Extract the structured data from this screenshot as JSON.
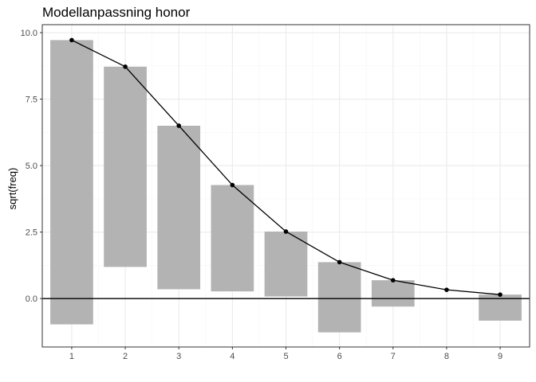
{
  "chart_data": {
    "type": "bar",
    "title": "Modellanpassning honor",
    "xlabel": "",
    "ylabel": "sqrt(freq)",
    "categories": [
      "1",
      "2",
      "3",
      "4",
      "5",
      "6",
      "7",
      "8",
      "9"
    ],
    "x": [
      1,
      2,
      3,
      4,
      5,
      6,
      7,
      8,
      9
    ],
    "expected_sqrt_freq": [
      9.72,
      8.72,
      6.5,
      4.27,
      2.52,
      1.37,
      0.69,
      0.33,
      0.15
    ],
    "bar_top": [
      9.72,
      8.72,
      6.5,
      4.27,
      2.52,
      1.37,
      0.69,
      null,
      0.15
    ],
    "bar_bottom": [
      -0.97,
      1.19,
      0.35,
      0.27,
      0.08,
      -1.27,
      -0.3,
      null,
      -0.83
    ],
    "xlim": [
      0.45,
      9.55
    ],
    "ylim": [
      -1.82,
      10.3
    ],
    "yticks": [
      "0.0",
      "2.5",
      "5.0",
      "7.5",
      "10.0"
    ],
    "ytick_values": [
      0,
      2.5,
      5,
      7.5,
      10
    ],
    "reference_line": 0,
    "grid": true,
    "legend": "none",
    "colors": {
      "bar": "#b3b3b3",
      "line": "#000000",
      "grid_major": "#ebebeb",
      "grid_minor": "#f5f5f5",
      "panel_border": "#333333",
      "tick_text": "#4d4d4d"
    }
  }
}
